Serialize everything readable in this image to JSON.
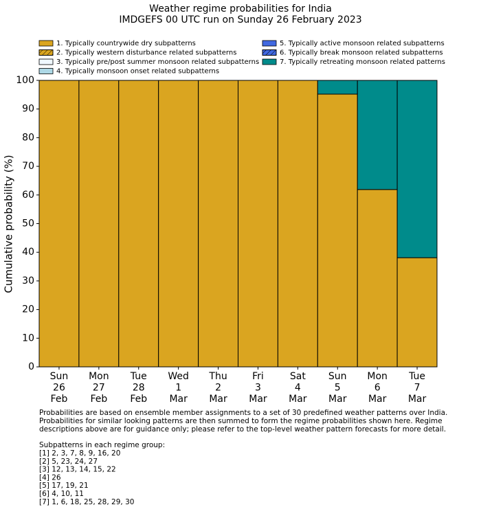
{
  "chart_data": {
    "type": "stacked_bar",
    "title": "Weather regime probabilities for India",
    "subtitle": "IMDGEFS 00 UTC run on Sunday 26 February 2023",
    "ylabel": "Cumulative probability (%)",
    "categories": [
      [
        "Sun",
        "26",
        "Feb"
      ],
      [
        "Mon",
        "27",
        "Feb"
      ],
      [
        "Tue",
        "28",
        "Feb"
      ],
      [
        "Wed",
        "1",
        "Mar"
      ],
      [
        "Thu",
        "2",
        "Mar"
      ],
      [
        "Fri",
        "3",
        "Mar"
      ],
      [
        "Sat",
        "4",
        "Mar"
      ],
      [
        "Sun",
        "5",
        "Mar"
      ],
      [
        "Mon",
        "6",
        "Mar"
      ],
      [
        "Tue",
        "7",
        "Mar"
      ]
    ],
    "series": [
      {
        "name": "1. Typically countrywide dry subpatterns",
        "color": "#daa520",
        "values": [
          100,
          100,
          100,
          100,
          100,
          100,
          100,
          95.2,
          61.9,
          38.1
        ]
      },
      {
        "name": "2. Typically western disturbance related subpatterns",
        "color": "#daa520",
        "hatch": true,
        "values": [
          0,
          0,
          0,
          0,
          0,
          0,
          0,
          0,
          0,
          0
        ]
      },
      {
        "name": "3. Typically pre/post summer monsoon related subpatterns",
        "color": "#f0f8ff",
        "values": [
          0,
          0,
          0,
          0,
          0,
          0,
          0,
          0,
          0,
          0
        ]
      },
      {
        "name": "4. Typically monsoon onset related subpatterns",
        "color": "#add8e6",
        "values": [
          0,
          0,
          0,
          0,
          0,
          0,
          0,
          0,
          0,
          0
        ]
      },
      {
        "name": "5. Typically active monsoon related subpatterns",
        "color": "#4169e1",
        "values": [
          0,
          0,
          0,
          0,
          0,
          0,
          0,
          0,
          0,
          0
        ]
      },
      {
        "name": "6. Typically break monsoon related subpatterns",
        "color": "#4169e1",
        "hatch": true,
        "values": [
          0,
          0,
          0,
          0,
          0,
          0,
          0,
          0,
          0,
          0
        ]
      },
      {
        "name": "7. Typically retreating monsoon related patterns",
        "color": "#008b8b",
        "values": [
          0,
          0,
          0,
          0,
          0,
          0,
          0,
          4.8,
          38.1,
          61.9
        ]
      }
    ],
    "ylim": [
      0,
      100
    ],
    "yticks": [
      0,
      10,
      20,
      30,
      40,
      50,
      60,
      70,
      80,
      90,
      100
    ],
    "notes": [
      "Probabilities are based on ensemble member assignments to a set of 30 predefined weather patterns over India.",
      "Probabilities for similar looking patterns are then summed to form the regime probabilities shown here. Regime",
      "descriptions above are for guidance only; please refer to the top-level weather pattern forecasts for more detail."
    ],
    "subpatterns_title": "Subpatterns in each regime group:",
    "subpatterns": [
      "[1] 2, 3, 7, 8, 9, 16, 20",
      "[2] 5, 23, 24, 27",
      "[3] 12, 13, 14, 15, 22",
      "[4] 26",
      "[5] 17, 19, 21",
      "[6] 4, 10, 11",
      "[7] 1, 6, 18, 25, 28, 29, 30"
    ]
  }
}
